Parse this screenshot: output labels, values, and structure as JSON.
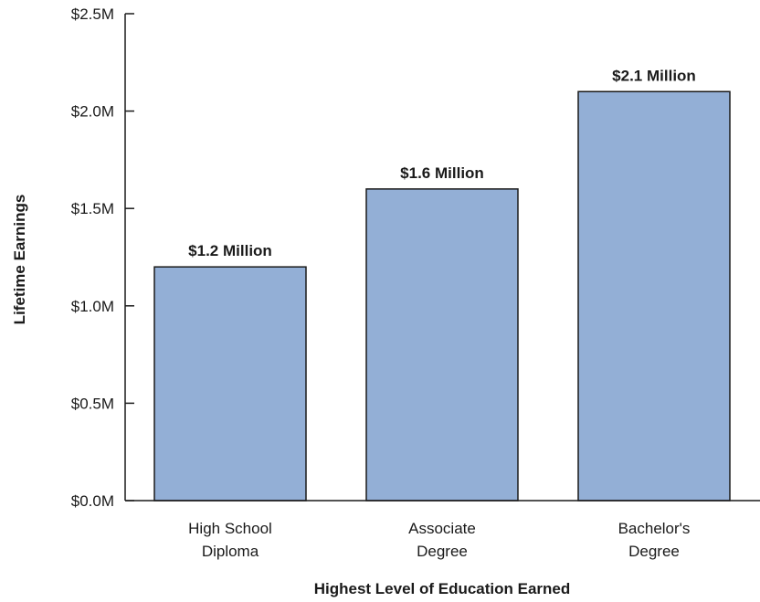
{
  "chart_data": {
    "type": "bar",
    "categories": [
      [
        "High School",
        "Diploma"
      ],
      [
        "Associate",
        "Degree"
      ],
      [
        "Bachelor's",
        "Degree"
      ]
    ],
    "values": [
      1.2,
      1.6,
      2.1
    ],
    "data_labels": [
      "$1.2 Million",
      "$1.6 Million",
      "$2.1 Million"
    ],
    "ylim": [
      0,
      2.5
    ],
    "y_ticks": [
      {
        "value": 0.0,
        "label": "$0.0M"
      },
      {
        "value": 0.5,
        "label": "$0.5M"
      },
      {
        "value": 1.0,
        "label": "$1.0M"
      },
      {
        "value": 1.5,
        "label": "$1.5M"
      },
      {
        "value": 2.0,
        "label": "$2.0M"
      },
      {
        "value": 2.5,
        "label": "$2.5M"
      }
    ],
    "xlabel": "Highest Level of Education Earned",
    "ylabel": "Lifetime Earnings",
    "grid": false,
    "bar_color": "#93afd6",
    "bar_edge_color": "#1a1a1a"
  }
}
